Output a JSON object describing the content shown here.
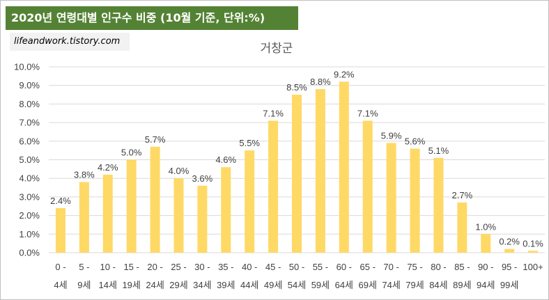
{
  "header": {
    "title": "2020년 연령대별 인구수 비중 (10월 기준, 단위:%)"
  },
  "source_label": "lifeandwork.tistory.com",
  "colors": {
    "banner": "#548235",
    "bar": "#FFD966",
    "grid": "#D9D9D9"
  },
  "chart_data": {
    "type": "bar",
    "title": "거창군",
    "categories": [
      "0 - 4세",
      "5 - 9세",
      "10 - 14세",
      "15 - 19세",
      "20 - 24세",
      "25 - 29세",
      "30 - 34세",
      "35 - 39세",
      "40 - 44세",
      "45 - 49세",
      "50 - 54세",
      "55 - 59세",
      "60 - 64세",
      "65 - 69세",
      "70 - 74세",
      "75 - 79세",
      "80 - 84세",
      "85 - 89세",
      "90 - 94세",
      "95 - 99세",
      "100+"
    ],
    "category_lines": [
      [
        "0 -",
        "4세"
      ],
      [
        "5 -",
        "9세"
      ],
      [
        "10 -",
        "14세"
      ],
      [
        "15 -",
        "19세"
      ],
      [
        "20 -",
        "24세"
      ],
      [
        "25 -",
        "29세"
      ],
      [
        "30 -",
        "34세"
      ],
      [
        "35 -",
        "39세"
      ],
      [
        "40 -",
        "44세"
      ],
      [
        "45 -",
        "49세"
      ],
      [
        "50 -",
        "54세"
      ],
      [
        "55 -",
        "59세"
      ],
      [
        "60 -",
        "64세"
      ],
      [
        "65 -",
        "69세"
      ],
      [
        "70 -",
        "74세"
      ],
      [
        "75 -",
        "79세"
      ],
      [
        "80 -",
        "84세"
      ],
      [
        "85 -",
        "89세"
      ],
      [
        "90 -",
        "94세"
      ],
      [
        "95 -",
        "99세"
      ],
      [
        "100+",
        ""
      ]
    ],
    "values": [
      2.4,
      3.8,
      4.2,
      5.0,
      5.7,
      4.0,
      3.6,
      4.6,
      5.5,
      7.1,
      8.5,
      8.8,
      9.2,
      7.1,
      5.9,
      5.6,
      5.1,
      2.7,
      1.0,
      0.2,
      0.1
    ],
    "data_labels": [
      "2.4%",
      "3.8%",
      "4.2%",
      "5.0%",
      "5.7%",
      "4.0%",
      "3.6%",
      "4.6%",
      "5.5%",
      "7.1%",
      "8.5%",
      "8.8%",
      "9.2%",
      "7.1%",
      "5.9%",
      "5.6%",
      "5.1%",
      "2.7%",
      "1.0%",
      "0.2%",
      "0.1%"
    ],
    "y_ticks": [
      "0.0%",
      "1.0%",
      "2.0%",
      "3.0%",
      "4.0%",
      "5.0%",
      "6.0%",
      "7.0%",
      "8.0%",
      "9.0%",
      "10.0%"
    ],
    "ylim": [
      0,
      10
    ],
    "grid": true
  }
}
